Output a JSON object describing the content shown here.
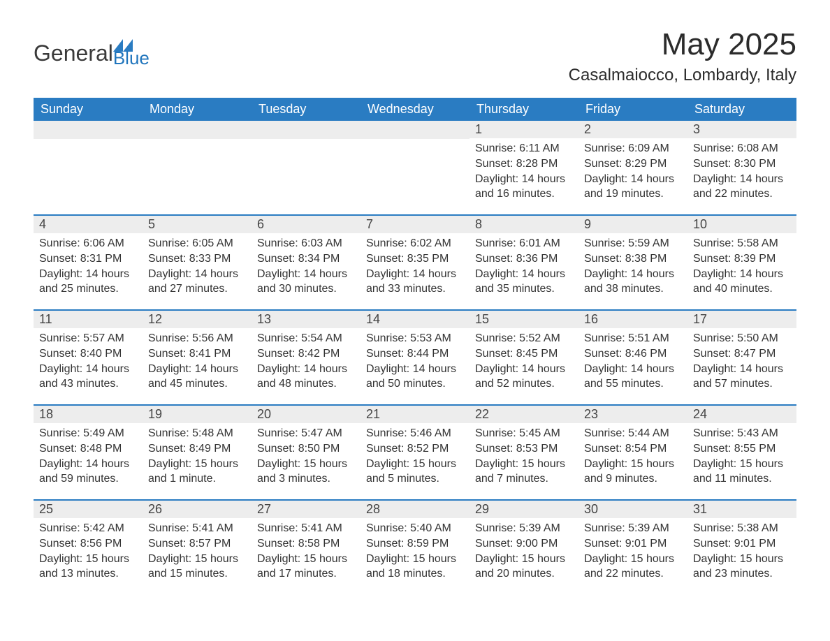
{
  "logo": {
    "general": "General",
    "blue": "Blue",
    "triangle_color": "#2a7cc2"
  },
  "title": {
    "month": "May 2025",
    "location": "Casalmaiocco, Lombardy, Italy"
  },
  "colors": {
    "header_bg": "#2a7cc2",
    "header_text": "#ffffff",
    "daynum_bg": "#ededed",
    "week_border": "#2a7cc2",
    "body_text": "#333333",
    "background": "#ffffff"
  },
  "day_names": [
    "Sunday",
    "Monday",
    "Tuesday",
    "Wednesday",
    "Thursday",
    "Friday",
    "Saturday"
  ],
  "weeks": [
    [
      null,
      null,
      null,
      null,
      {
        "n": "1",
        "sunrise": "Sunrise: 6:11 AM",
        "sunset": "Sunset: 8:28 PM",
        "daylight": "Daylight: 14 hours and 16 minutes."
      },
      {
        "n": "2",
        "sunrise": "Sunrise: 6:09 AM",
        "sunset": "Sunset: 8:29 PM",
        "daylight": "Daylight: 14 hours and 19 minutes."
      },
      {
        "n": "3",
        "sunrise": "Sunrise: 6:08 AM",
        "sunset": "Sunset: 8:30 PM",
        "daylight": "Daylight: 14 hours and 22 minutes."
      }
    ],
    [
      {
        "n": "4",
        "sunrise": "Sunrise: 6:06 AM",
        "sunset": "Sunset: 8:31 PM",
        "daylight": "Daylight: 14 hours and 25 minutes."
      },
      {
        "n": "5",
        "sunrise": "Sunrise: 6:05 AM",
        "sunset": "Sunset: 8:33 PM",
        "daylight": "Daylight: 14 hours and 27 minutes."
      },
      {
        "n": "6",
        "sunrise": "Sunrise: 6:03 AM",
        "sunset": "Sunset: 8:34 PM",
        "daylight": "Daylight: 14 hours and 30 minutes."
      },
      {
        "n": "7",
        "sunrise": "Sunrise: 6:02 AM",
        "sunset": "Sunset: 8:35 PM",
        "daylight": "Daylight: 14 hours and 33 minutes."
      },
      {
        "n": "8",
        "sunrise": "Sunrise: 6:01 AM",
        "sunset": "Sunset: 8:36 PM",
        "daylight": "Daylight: 14 hours and 35 minutes."
      },
      {
        "n": "9",
        "sunrise": "Sunrise: 5:59 AM",
        "sunset": "Sunset: 8:38 PM",
        "daylight": "Daylight: 14 hours and 38 minutes."
      },
      {
        "n": "10",
        "sunrise": "Sunrise: 5:58 AM",
        "sunset": "Sunset: 8:39 PM",
        "daylight": "Daylight: 14 hours and 40 minutes."
      }
    ],
    [
      {
        "n": "11",
        "sunrise": "Sunrise: 5:57 AM",
        "sunset": "Sunset: 8:40 PM",
        "daylight": "Daylight: 14 hours and 43 minutes."
      },
      {
        "n": "12",
        "sunrise": "Sunrise: 5:56 AM",
        "sunset": "Sunset: 8:41 PM",
        "daylight": "Daylight: 14 hours and 45 minutes."
      },
      {
        "n": "13",
        "sunrise": "Sunrise: 5:54 AM",
        "sunset": "Sunset: 8:42 PM",
        "daylight": "Daylight: 14 hours and 48 minutes."
      },
      {
        "n": "14",
        "sunrise": "Sunrise: 5:53 AM",
        "sunset": "Sunset: 8:44 PM",
        "daylight": "Daylight: 14 hours and 50 minutes."
      },
      {
        "n": "15",
        "sunrise": "Sunrise: 5:52 AM",
        "sunset": "Sunset: 8:45 PM",
        "daylight": "Daylight: 14 hours and 52 minutes."
      },
      {
        "n": "16",
        "sunrise": "Sunrise: 5:51 AM",
        "sunset": "Sunset: 8:46 PM",
        "daylight": "Daylight: 14 hours and 55 minutes."
      },
      {
        "n": "17",
        "sunrise": "Sunrise: 5:50 AM",
        "sunset": "Sunset: 8:47 PM",
        "daylight": "Daylight: 14 hours and 57 minutes."
      }
    ],
    [
      {
        "n": "18",
        "sunrise": "Sunrise: 5:49 AM",
        "sunset": "Sunset: 8:48 PM",
        "daylight": "Daylight: 14 hours and 59 minutes."
      },
      {
        "n": "19",
        "sunrise": "Sunrise: 5:48 AM",
        "sunset": "Sunset: 8:49 PM",
        "daylight": "Daylight: 15 hours and 1 minute."
      },
      {
        "n": "20",
        "sunrise": "Sunrise: 5:47 AM",
        "sunset": "Sunset: 8:50 PM",
        "daylight": "Daylight: 15 hours and 3 minutes."
      },
      {
        "n": "21",
        "sunrise": "Sunrise: 5:46 AM",
        "sunset": "Sunset: 8:52 PM",
        "daylight": "Daylight: 15 hours and 5 minutes."
      },
      {
        "n": "22",
        "sunrise": "Sunrise: 5:45 AM",
        "sunset": "Sunset: 8:53 PM",
        "daylight": "Daylight: 15 hours and 7 minutes."
      },
      {
        "n": "23",
        "sunrise": "Sunrise: 5:44 AM",
        "sunset": "Sunset: 8:54 PM",
        "daylight": "Daylight: 15 hours and 9 minutes."
      },
      {
        "n": "24",
        "sunrise": "Sunrise: 5:43 AM",
        "sunset": "Sunset: 8:55 PM",
        "daylight": "Daylight: 15 hours and 11 minutes."
      }
    ],
    [
      {
        "n": "25",
        "sunrise": "Sunrise: 5:42 AM",
        "sunset": "Sunset: 8:56 PM",
        "daylight": "Daylight: 15 hours and 13 minutes."
      },
      {
        "n": "26",
        "sunrise": "Sunrise: 5:41 AM",
        "sunset": "Sunset: 8:57 PM",
        "daylight": "Daylight: 15 hours and 15 minutes."
      },
      {
        "n": "27",
        "sunrise": "Sunrise: 5:41 AM",
        "sunset": "Sunset: 8:58 PM",
        "daylight": "Daylight: 15 hours and 17 minutes."
      },
      {
        "n": "28",
        "sunrise": "Sunrise: 5:40 AM",
        "sunset": "Sunset: 8:59 PM",
        "daylight": "Daylight: 15 hours and 18 minutes."
      },
      {
        "n": "29",
        "sunrise": "Sunrise: 5:39 AM",
        "sunset": "Sunset: 9:00 PM",
        "daylight": "Daylight: 15 hours and 20 minutes."
      },
      {
        "n": "30",
        "sunrise": "Sunrise: 5:39 AM",
        "sunset": "Sunset: 9:01 PM",
        "daylight": "Daylight: 15 hours and 22 minutes."
      },
      {
        "n": "31",
        "sunrise": "Sunrise: 5:38 AM",
        "sunset": "Sunset: 9:01 PM",
        "daylight": "Daylight: 15 hours and 23 minutes."
      }
    ]
  ]
}
